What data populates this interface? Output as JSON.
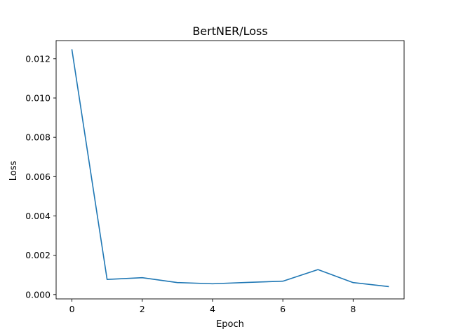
{
  "chart_data": {
    "type": "line",
    "title": "BertNER/Loss",
    "xlabel": "Epoch",
    "ylabel": "Loss",
    "x": [
      0,
      1,
      2,
      3,
      4,
      5,
      6,
      7,
      8,
      9
    ],
    "series": [
      {
        "values": [
          0.01245,
          0.00077,
          0.00086,
          0.00061,
          0.00055,
          0.00062,
          0.00068,
          0.00127,
          0.00061,
          0.00041
        ],
        "color": "#1f77b4"
      }
    ],
    "xlim": [
      -0.45,
      9.45
    ],
    "ylim": [
      -0.00022,
      0.01292
    ],
    "xticks": [
      0,
      2,
      4,
      6,
      8
    ],
    "yticks": [
      0.0,
      0.002,
      0.004,
      0.006,
      0.008,
      0.01,
      0.012
    ],
    "xtick_labels": [
      "0",
      "2",
      "4",
      "6",
      "8"
    ],
    "ytick_labels": [
      "0.000",
      "0.002",
      "0.004",
      "0.006",
      "0.008",
      "0.010",
      "0.012"
    ],
    "grid": false,
    "legend": "none"
  }
}
